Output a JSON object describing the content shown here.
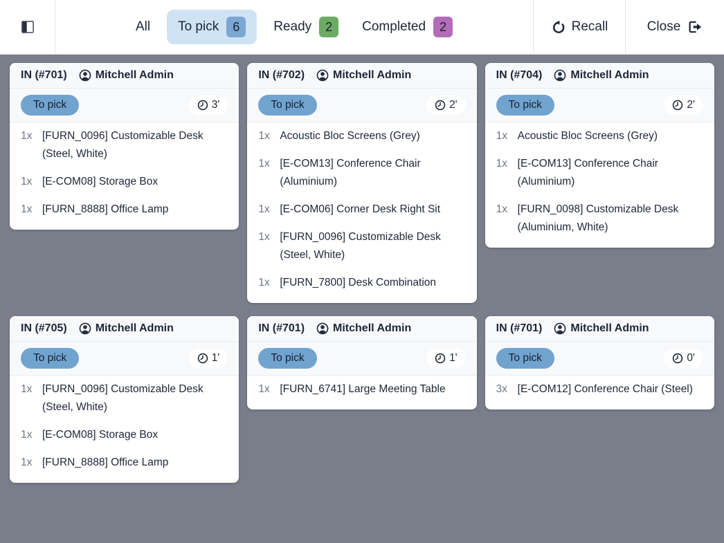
{
  "toolbar": {
    "toggle_icon": "panel-left-icon",
    "tabs": [
      {
        "label": "All",
        "count": null,
        "active": false,
        "badge_color": null
      },
      {
        "label": "To pick",
        "count": "6",
        "active": true,
        "badge_color": "#7ba7d3"
      },
      {
        "label": "Ready",
        "count": "2",
        "active": false,
        "badge_color": "#6cab64"
      },
      {
        "label": "Completed",
        "count": "2",
        "active": false,
        "badge_color": "#b56cb8"
      }
    ],
    "recall": {
      "label": "Recall",
      "icon": "undo-icon"
    },
    "close": {
      "label": "Close",
      "icon": "sign-out-icon"
    }
  },
  "board": {
    "cards": [
      {
        "title": "IN (#701)",
        "owner": "Mitchell Admin",
        "status": "To pick",
        "time": "3'",
        "items": [
          {
            "qty": "1x",
            "name": "[FURN_0096] Customizable Desk (Steel, White)"
          },
          {
            "qty": "1x",
            "name": "[E-COM08] Storage Box"
          },
          {
            "qty": "1x",
            "name": "[FURN_8888] Office Lamp"
          }
        ]
      },
      {
        "title": "IN (#702)",
        "owner": "Mitchell Admin",
        "status": "To pick",
        "time": "2'",
        "items": [
          {
            "qty": "1x",
            "name": "Acoustic Bloc Screens (Grey)"
          },
          {
            "qty": "1x",
            "name": "[E-COM13] Conference Chair (Aluminium)"
          },
          {
            "qty": "1x",
            "name": "[E-COM06] Corner Desk Right Sit"
          },
          {
            "qty": "1x",
            "name": "[FURN_0096] Customizable Desk (Steel, White)"
          },
          {
            "qty": "1x",
            "name": "[FURN_7800] Desk Combination"
          }
        ]
      },
      {
        "title": "IN (#704)",
        "owner": "Mitchell Admin",
        "status": "To pick",
        "time": "2'",
        "items": [
          {
            "qty": "1x",
            "name": "Acoustic Bloc Screens (Grey)"
          },
          {
            "qty": "1x",
            "name": "[E-COM13] Conference Chair (Aluminium)"
          },
          {
            "qty": "1x",
            "name": "[FURN_0098] Customizable Desk (Aluminium, White)"
          }
        ]
      },
      {
        "title": "IN (#705)",
        "owner": "Mitchell Admin",
        "status": "To pick",
        "time": "1'",
        "items": [
          {
            "qty": "1x",
            "name": "[FURN_0096] Customizable Desk (Steel, White)"
          },
          {
            "qty": "1x",
            "name": "[E-COM08] Storage Box"
          },
          {
            "qty": "1x",
            "name": "[FURN_8888] Office Lamp"
          }
        ]
      },
      {
        "title": "IN (#701)",
        "owner": "Mitchell Admin",
        "status": "To pick",
        "time": "1'",
        "items": [
          {
            "qty": "1x",
            "name": "[FURN_6741] Large Meeting Table"
          }
        ]
      },
      {
        "title": "IN (#701)",
        "owner": "Mitchell Admin",
        "status": "To pick",
        "time": "0'",
        "items": [
          {
            "qty": "3x",
            "name": "[E-COM12] Conference Chair (Steel)"
          }
        ]
      }
    ]
  },
  "colors": {
    "background": "#7a7e8a",
    "card_header_bg": "#f8f9fb",
    "status_pill_bg": "#71a3cf",
    "active_tab_bg": "#d0e3f4",
    "badge_to_pick": "#7ba7d3",
    "badge_ready": "#6cab64",
    "badge_completed": "#b56cb8",
    "text_dark": "#1c2637",
    "text_muted": "#6d7582"
  }
}
